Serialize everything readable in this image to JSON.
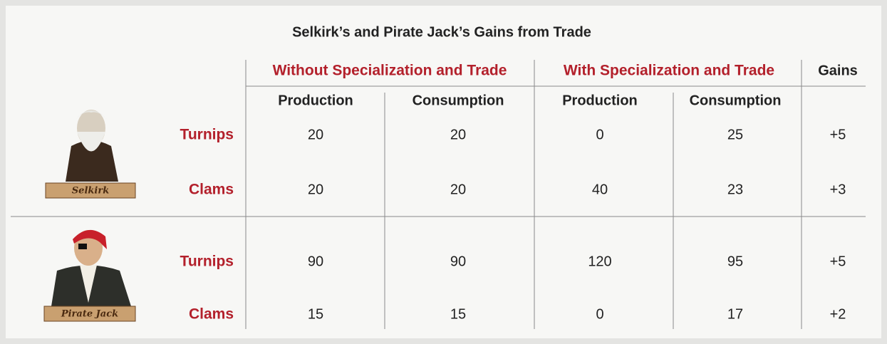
{
  "title": "Selkirk’s and Pirate Jack’s Gains from Trade",
  "column_groups": [
    "Without Specialization and Trade",
    "With Specialization and Trade",
    "Gains"
  ],
  "subheaders": [
    "Production",
    "Consumption",
    "Production",
    "Consumption"
  ],
  "people": [
    {
      "name": "Selkirk",
      "rows": [
        {
          "good": "Turnips",
          "values": [
            20,
            20,
            0,
            25
          ],
          "gain": "+5"
        },
        {
          "good": "Clams",
          "values": [
            20,
            20,
            40,
            23
          ],
          "gain": "+3"
        }
      ]
    },
    {
      "name": "Pirate Jack",
      "rows": [
        {
          "good": "Turnips",
          "values": [
            90,
            90,
            120,
            95
          ],
          "gain": "+5"
        },
        {
          "good": "Clams",
          "values": [
            15,
            15,
            0,
            17
          ],
          "gain": "+2"
        }
      ]
    }
  ]
}
